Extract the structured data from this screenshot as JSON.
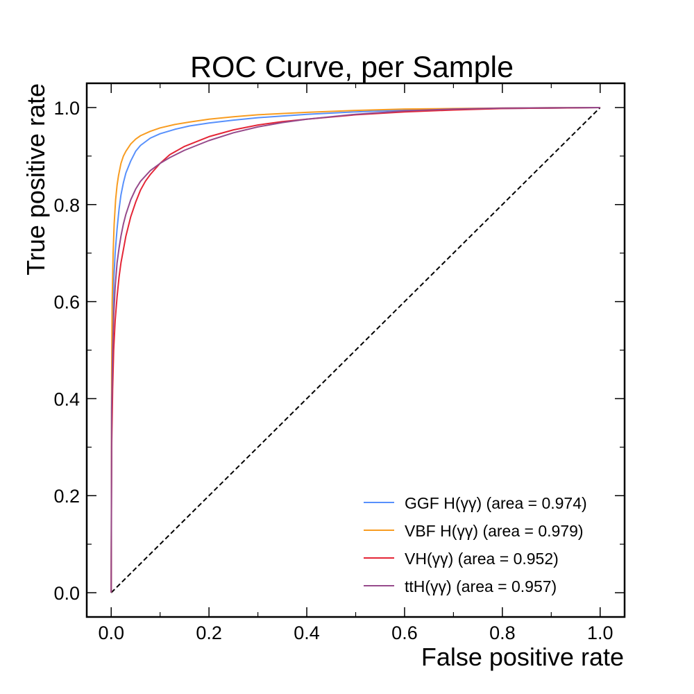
{
  "chart_data": {
    "type": "line",
    "title": "ROC Curve, per Sample",
    "xlabel": "False positive rate",
    "ylabel": "True positive rate",
    "xlim": [
      -0.05,
      1.05
    ],
    "ylim": [
      -0.05,
      1.05
    ],
    "xticks": [
      0.0,
      0.2,
      0.4,
      0.6,
      0.8,
      1.0
    ],
    "xtick_labels": [
      "0.0",
      "0.2",
      "0.4",
      "0.6",
      "0.8",
      "1.0"
    ],
    "yticks": [
      0.0,
      0.2,
      0.4,
      0.6,
      0.8,
      1.0
    ],
    "ytick_labels": [
      "0.0",
      "0.2",
      "0.4",
      "0.6",
      "0.8",
      "1.0"
    ],
    "grid": false,
    "legend_position": "lower-right",
    "diagonal": {
      "x": [
        0,
        1
      ],
      "y": [
        0,
        1
      ],
      "style": "dashed",
      "color": "#000000"
    },
    "series": [
      {
        "name": "GGF H(γγ) (area = 0.974)",
        "color": "#5790fc",
        "x": [
          0,
          0.001,
          0.003,
          0.005,
          0.008,
          0.012,
          0.016,
          0.02,
          0.025,
          0.03,
          0.04,
          0.05,
          0.06,
          0.08,
          0.1,
          0.13,
          0.16,
          0.2,
          0.25,
          0.3,
          0.4,
          0.5,
          0.6,
          0.7,
          0.8,
          0.9,
          1.0
        ],
        "y": [
          0,
          0.4,
          0.56,
          0.64,
          0.7,
          0.75,
          0.79,
          0.82,
          0.845,
          0.865,
          0.89,
          0.91,
          0.922,
          0.937,
          0.946,
          0.955,
          0.962,
          0.968,
          0.974,
          0.979,
          0.986,
          0.991,
          0.995,
          0.997,
          0.998,
          0.999,
          1.0
        ]
      },
      {
        "name": "VBF H(γγ) (area = 0.979)",
        "color": "#f89c20",
        "x": [
          0,
          0.001,
          0.002,
          0.004,
          0.006,
          0.009,
          0.012,
          0.015,
          0.02,
          0.025,
          0.03,
          0.04,
          0.05,
          0.06,
          0.08,
          0.1,
          0.13,
          0.16,
          0.2,
          0.25,
          0.3,
          0.4,
          0.5,
          0.6,
          0.7,
          0.8,
          0.9,
          1.0
        ],
        "y": [
          0,
          0.45,
          0.6,
          0.7,
          0.76,
          0.81,
          0.84,
          0.86,
          0.885,
          0.9,
          0.91,
          0.925,
          0.935,
          0.942,
          0.951,
          0.958,
          0.965,
          0.97,
          0.976,
          0.981,
          0.985,
          0.99,
          0.994,
          0.997,
          0.998,
          0.999,
          0.9995,
          1.0
        ]
      },
      {
        "name": "VH(γγ) (area = 0.952)",
        "color": "#e42536",
        "x": [
          0,
          0.001,
          0.003,
          0.005,
          0.008,
          0.012,
          0.016,
          0.02,
          0.03,
          0.04,
          0.05,
          0.06,
          0.07,
          0.08,
          0.1,
          0.12,
          0.15,
          0.2,
          0.25,
          0.3,
          0.35,
          0.4,
          0.5,
          0.6,
          0.7,
          0.8,
          0.9,
          1.0
        ],
        "y": [
          0,
          0.3,
          0.42,
          0.5,
          0.56,
          0.61,
          0.65,
          0.68,
          0.735,
          0.775,
          0.805,
          0.83,
          0.848,
          0.862,
          0.885,
          0.903,
          0.92,
          0.94,
          0.954,
          0.964,
          0.971,
          0.976,
          0.985,
          0.991,
          0.995,
          0.998,
          0.999,
          1.0
        ]
      },
      {
        "name": "ttH(γγ) (area = 0.957)",
        "color": "#964a8b",
        "x": [
          0,
          0.001,
          0.003,
          0.005,
          0.008,
          0.012,
          0.016,
          0.02,
          0.025,
          0.03,
          0.04,
          0.05,
          0.06,
          0.08,
          0.1,
          0.12,
          0.15,
          0.2,
          0.25,
          0.3,
          0.35,
          0.4,
          0.5,
          0.6,
          0.7,
          0.8,
          0.9,
          1.0
        ],
        "y": [
          0,
          0.38,
          0.5,
          0.57,
          0.63,
          0.68,
          0.71,
          0.735,
          0.76,
          0.78,
          0.81,
          0.832,
          0.848,
          0.87,
          0.885,
          0.897,
          0.912,
          0.932,
          0.948,
          0.96,
          0.969,
          0.976,
          0.986,
          0.993,
          0.997,
          0.999,
          0.9995,
          1.0
        ]
      }
    ]
  }
}
